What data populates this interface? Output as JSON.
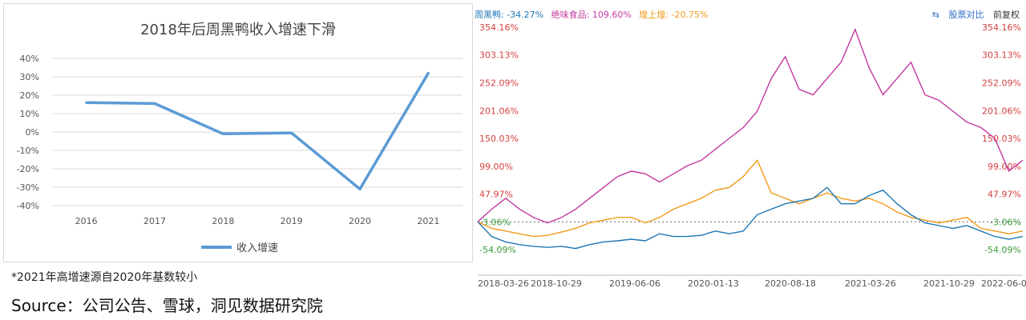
{
  "left_chart": {
    "chart_data": {
      "type": "line",
      "title": "2018年后周黑鸭收入增速下滑",
      "categories": [
        "2016",
        "2017",
        "2018",
        "2019",
        "2020",
        "2021"
      ],
      "series": [
        {
          "name": "收入增速",
          "values": [
            16,
            15.5,
            -1,
            -0.5,
            -31,
            32
          ],
          "color": "#5b9bd5"
        }
      ],
      "ylim": [
        -40,
        40
      ],
      "y_ticks": [
        "40%",
        "30%",
        "20%",
        "10%",
        "0%",
        "-10%",
        "-20%",
        "-30%",
        "-40%"
      ],
      "grid": true,
      "legend": "bottom"
    }
  },
  "footnote": "*2021年高增速源自2020年基数较小",
  "source": "Source：公司公告、雪球，洞见数据研究院",
  "right_chart": {
    "legend": [
      {
        "label": "周黑鸭: -34.27%",
        "color": "#1f77b4"
      },
      {
        "label": "绝味食品: 109.60%",
        "color": "#c2399f"
      },
      {
        "label": "煌上煌: -20.75%",
        "color": "#f09a1a"
      }
    ],
    "tools": {
      "compare": "股票对比",
      "adjust": "前复权"
    },
    "chart_data": {
      "type": "line",
      "x_ticks": [
        "2018-03-26",
        "2018-10-29",
        "2019-06-06",
        "2020-01-13",
        "2020-08-18",
        "2021-03-26",
        "2021-10-29",
        "2022-06-09"
      ],
      "y_ticks_left": [
        "354.16%",
        "303.13%",
        "252.09%",
        "201.06%",
        "150.03%",
        "99.00%",
        "47.97%",
        "-3.06%",
        "-54.09%"
      ],
      "y_ticks_right": [
        "354.16%",
        "303.13%",
        "252.09%",
        "201.06%",
        "150.03%",
        "99.00%",
        "47.97%",
        "-3.06%",
        "-54.09%"
      ],
      "baseline": -3.06,
      "ylim": [
        -54.09,
        354.16
      ],
      "series": [
        {
          "name": "绝味食品",
          "color": "#c2399f",
          "values": [
            -3,
            20,
            40,
            20,
            5,
            -5,
            5,
            20,
            40,
            60,
            80,
            90,
            85,
            70,
            85,
            100,
            110,
            130,
            150,
            170,
            200,
            260,
            300,
            240,
            230,
            260,
            290,
            350,
            280,
            230,
            260,
            290,
            230,
            220,
            200,
            180,
            170,
            150,
            90,
            110
          ]
        },
        {
          "name": "煌上煌",
          "color": "#f09a1a",
          "values": [
            -3,
            -15,
            -20,
            -25,
            -30,
            -28,
            -22,
            -15,
            -5,
            0,
            5,
            5,
            -5,
            5,
            20,
            30,
            40,
            55,
            60,
            80,
            110,
            50,
            40,
            30,
            40,
            50,
            40,
            35,
            40,
            30,
            15,
            5,
            0,
            -5,
            0,
            5,
            -15,
            -20,
            -25,
            -20
          ]
        },
        {
          "name": "周黑鸭",
          "color": "#1f77b4",
          "values": [
            -3,
            -30,
            -40,
            -45,
            -48,
            -50,
            -48,
            -52,
            -45,
            -40,
            -38,
            -35,
            -38,
            -25,
            -30,
            -30,
            -28,
            -20,
            -25,
            -20,
            10,
            20,
            30,
            35,
            40,
            60,
            30,
            30,
            45,
            55,
            30,
            10,
            -5,
            -10,
            -15,
            -10,
            -20,
            -30,
            -35,
            -30
          ]
        }
      ]
    }
  }
}
